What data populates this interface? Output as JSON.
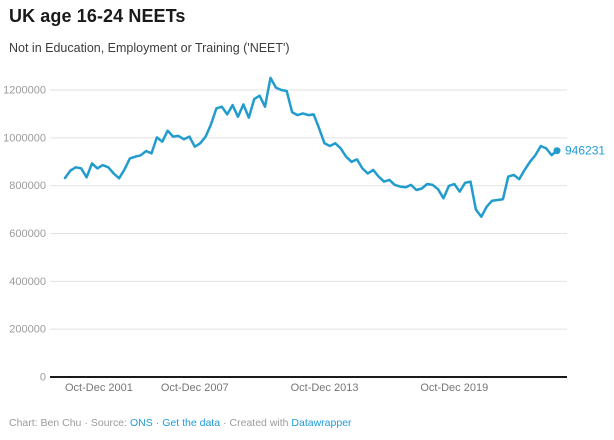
{
  "header": {
    "title": "UK age 16-24 NEETs",
    "subtitle": "Not in Education, Employment or Training ('NEET')"
  },
  "chart_data": {
    "type": "line",
    "title": "UK age 16-24 NEETs",
    "subtitle": "Not in Education, Employment or Training ('NEET')",
    "frequency": "quarterly",
    "x_tick_labels": [
      "Oct-Dec 2001",
      "Oct-Dec 2007",
      "Oct-Dec 2013",
      "Oct-Dec 2019"
    ],
    "x_tick_indices": [
      0,
      24,
      48,
      72
    ],
    "y_ticks": [
      0,
      200000,
      400000,
      600000,
      800000,
      1000000,
      1200000
    ],
    "ylim": [
      0,
      1285000
    ],
    "grid": true,
    "legend_position": "none",
    "line_color": "#219ccd",
    "end_label_color": "#1e9bdb",
    "end_label": "946231",
    "end_value": 946231,
    "values": [
      832000,
      863000,
      877000,
      872000,
      835000,
      893000,
      872000,
      886000,
      877000,
      851000,
      831000,
      868000,
      914000,
      921000,
      927000,
      945000,
      935000,
      1002000,
      984000,
      1030000,
      1005000,
      1008000,
      994000,
      1005000,
      963000,
      977000,
      1005000,
      1056000,
      1123000,
      1130000,
      1098000,
      1137000,
      1088000,
      1140000,
      1084000,
      1162000,
      1176000,
      1130000,
      1251000,
      1210000,
      1200000,
      1196000,
      1107000,
      1095000,
      1102000,
      1095000,
      1098000,
      1040000,
      977000,
      966000,
      977000,
      956000,
      921000,
      900000,
      910000,
      872000,
      851000,
      866000,
      838000,
      817000,
      824000,
      803000,
      796000,
      793000,
      803000,
      782000,
      788000,
      807000,
      803000,
      785000,
      747000,
      799000,
      807000,
      775000,
      812000,
      817000,
      700000,
      670000,
      712000,
      737000,
      740000,
      743000,
      838000,
      845000,
      827000,
      866000,
      900000,
      928000,
      966000,
      956000,
      928000,
      946231
    ]
  },
  "footer": {
    "chart_credit": "Chart: Ben Chu",
    "separator": "·",
    "source_label": "Source:",
    "source_name": "ONS",
    "get_the_data": "Get the data",
    "created_with": "Created with",
    "tool_name": "Datawrapper"
  }
}
